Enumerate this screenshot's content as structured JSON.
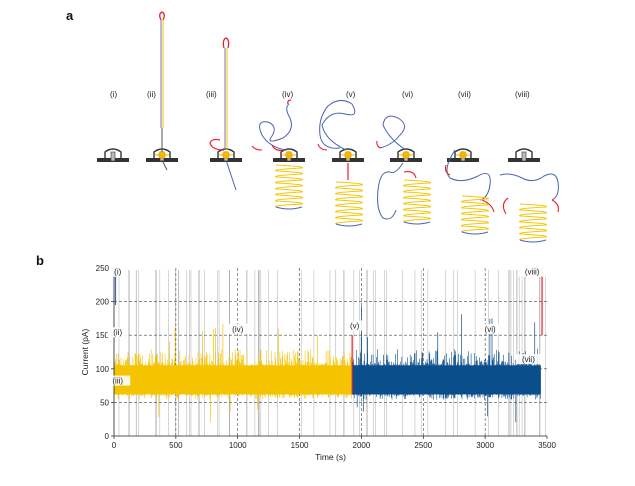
{
  "panel_a": {
    "letter": "a",
    "stages": [
      "(i)",
      "(ii)",
      "(iii)",
      "(iv)",
      "(v)",
      "(vi)",
      "(vii)",
      "(viii)"
    ]
  },
  "panel_b": {
    "letter": "b",
    "colors": {
      "yellow": "#f5c400",
      "blue": "#0b4f8c",
      "red": "#e8202a",
      "grey": "#9a9a9a",
      "dash": "#444444"
    },
    "chart_data": {
      "type": "line",
      "xlabel": "Time (s)",
      "ylabel": "Current (pA)",
      "xlim": [
        0,
        3500
      ],
      "ylim": [
        0,
        250
      ],
      "xticks": [
        0,
        500,
        1000,
        1500,
        2000,
        2500,
        3000,
        3500
      ],
      "yticks": [
        0,
        50,
        100,
        150,
        200,
        250
      ],
      "hlines_dashed": [
        50,
        100,
        150,
        200
      ],
      "vlines_dashed": [
        500,
        1000,
        1500,
        2000,
        2500,
        3000
      ],
      "segments": [
        {
          "color": "yellow",
          "x_start": 0,
          "x_end": 1920,
          "baseline_low": 62,
          "baseline_high": 105
        },
        {
          "color": "blue",
          "x_start": 1930,
          "x_end": 3450,
          "baseline_low": 62,
          "baseline_high": 105
        }
      ],
      "red_spikes": [
        1925,
        3460
      ],
      "annotations": [
        {
          "label": "(i)",
          "x": 30,
          "y": 240
        },
        {
          "label": "(ii)",
          "x": 30,
          "y": 150
        },
        {
          "label": "(iii)",
          "x": 30,
          "y": 78
        },
        {
          "label": "(iv)",
          "x": 1000,
          "y": 155
        },
        {
          "label": "(v)",
          "x": 1945,
          "y": 160
        },
        {
          "label": "(vi)",
          "x": 3040,
          "y": 155
        },
        {
          "label": "(vii)",
          "x": 3350,
          "y": 110
        },
        {
          "label": "(viii)",
          "x": 3380,
          "y": 240
        }
      ]
    }
  }
}
